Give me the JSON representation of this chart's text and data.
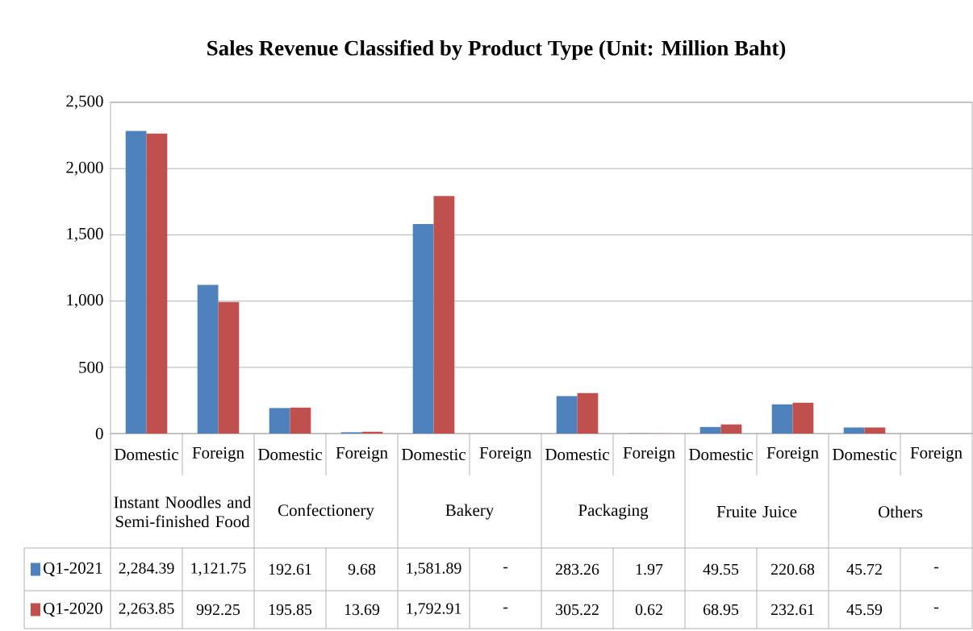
{
  "chart_data": {
    "type": "bar",
    "title": "Sales Revenue Classified by Product Type (Unit: Million Baht)",
    "categories": [
      "Domestic",
      "Foreign",
      "Domestic",
      "Foreign",
      "Domestic",
      "Foreign",
      "Domestic",
      "Foreign",
      "Domestic",
      "Foreign",
      "Domestic",
      "Foreign"
    ],
    "annotations": [
      "Instant Noodles and Semi-finished Food",
      "Confectionery",
      "Bakery",
      "Packaging",
      "Fruite Juice",
      "Others"
    ],
    "series": [
      {
        "name": "Q1-2021",
        "color": "#4f81bd",
        "values": [
          2284.39,
          1121.75,
          192.61,
          9.68,
          1581.89,
          null,
          283.26,
          1.97,
          49.55,
          220.68,
          45.72,
          null
        ],
        "value_labels": [
          "2,284.39",
          "1,121.75",
          "192.61",
          "9.68",
          "1,581.89",
          "-",
          "283.26",
          "1.97",
          "49.55",
          "220.68",
          "45.72",
          "-"
        ]
      },
      {
        "name": "Q1-2020",
        "color": "#c0504d",
        "values": [
          2263.85,
          992.25,
          195.85,
          13.69,
          1792.91,
          null,
          305.22,
          0.62,
          68.95,
          232.61,
          45.59,
          null
        ],
        "value_labels": [
          "2,263.85",
          "992.25",
          "195.85",
          "13.69",
          "1,792.91",
          "-",
          "305.22",
          "0.62",
          "68.95",
          "232.61",
          "45.59",
          "-"
        ]
      }
    ],
    "ylim": [
      0,
      2500
    ],
    "yticks": [
      0,
      {
        "value": 500,
        "label": "500"
      },
      {
        "value": 1000,
        "label": "1,000"
      },
      {
        "value": 1500,
        "label": "1,500"
      },
      {
        "value": 2000,
        "label": "2,000"
      },
      {
        "value": 2500,
        "label": "2,500"
      }
    ],
    "grid": "y",
    "legend": "bottom left"
  }
}
